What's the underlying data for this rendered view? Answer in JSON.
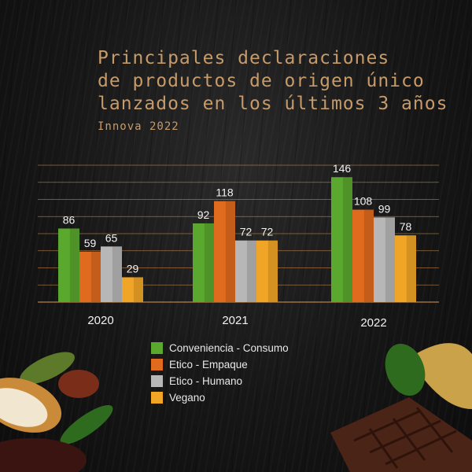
{
  "title_lines": [
    "Principales declaraciones",
    "de productos de origen único",
    "lanzados en los últimos 3 años"
  ],
  "subtitle": "Innova 2022",
  "colors": {
    "conveniencia": "#5aa82e",
    "etico_empaque": "#e06a1e",
    "etico_humano": "#b7b7b7",
    "vegano": "#f0a526",
    "title": "#c79a6a",
    "gridline": "#c8894e"
  },
  "decor": {
    "left": "cocoa-pods-and-leaves",
    "right": "chocolate-bar-and-gold-leaf"
  },
  "chart_data": {
    "type": "bar",
    "categories": [
      "2020",
      "2021",
      "2022"
    ],
    "series": [
      {
        "name": "Conveniencia - Consumo",
        "color": "#5aa82e",
        "values": [
          86,
          92,
          146
        ]
      },
      {
        "name": "Etico - Empaque",
        "color": "#e06a1e",
        "values": [
          59,
          118,
          108
        ]
      },
      {
        "name": "Etico - Humano",
        "color": "#b7b7b7",
        "values": [
          65,
          72,
          99
        ]
      },
      {
        "name": "Vegano",
        "color": "#f0a526",
        "values": [
          29,
          72,
          78
        ]
      }
    ],
    "ylim": [
      0,
      160
    ],
    "grid": true,
    "legend_position": "bottom",
    "data_labels": true
  }
}
